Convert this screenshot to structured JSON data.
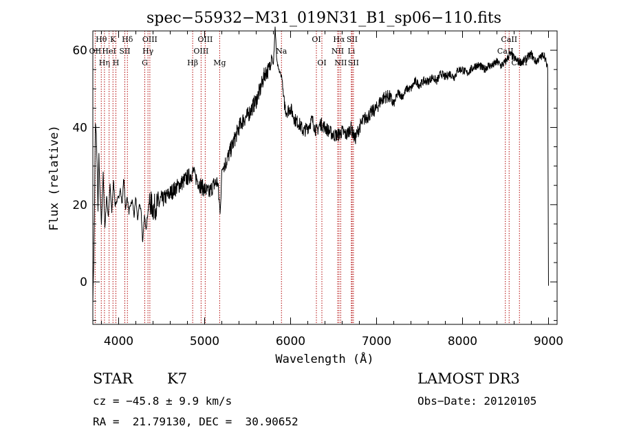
{
  "chart_data": {
    "type": "line",
    "title": "spec−55932−M31_019N31_B1_sp06−110.fits",
    "xlabel": "Wavelength (Å)",
    "ylabel": "Flux (relative)",
    "xlim": [
      3700,
      9100
    ],
    "ylim": [
      -11,
      65
    ],
    "xticks": [
      4000,
      5000,
      6000,
      7000,
      8000,
      9000
    ],
    "yticks": [
      0,
      20,
      40,
      60
    ],
    "grid": false,
    "series": [
      {
        "x": [
          3700,
          3710,
          3720,
          3730,
          3740,
          3750,
          3760,
          3770,
          3780,
          3800,
          3820,
          3840,
          3860,
          3880,
          3900,
          3920,
          3940,
          3960,
          3980,
          4000,
          4020,
          4040,
          4060,
          4080,
          4100,
          4120,
          4140,
          4160,
          4180,
          4200,
          4220,
          4240,
          4260,
          4280,
          4300,
          4320,
          4340,
          4360,
          4400,
          4450,
          4500,
          4550,
          4600,
          4650,
          4700,
          4750,
          4800,
          4850,
          4880,
          4900,
          4950,
          5000,
          5050,
          5100,
          5150,
          5180,
          5190,
          5200,
          5220,
          5250,
          5300,
          5350,
          5400,
          5450,
          5500,
          5550,
          5600,
          5650,
          5700,
          5750,
          5780,
          5800,
          5820,
          5840,
          5860,
          5880,
          5900,
          5920,
          5950,
          6000,
          6050,
          6100,
          6150,
          6200,
          6250,
          6300,
          6350,
          6400,
          6450,
          6500,
          6550,
          6600,
          6650,
          6700,
          6750,
          6800,
          6850,
          6900,
          6950,
          7000,
          7050,
          7100,
          7150,
          7200,
          7250,
          7300,
          7350,
          7400,
          7450,
          7500,
          7550,
          7600,
          7650,
          7700,
          7750,
          7800,
          7850,
          7900,
          7950,
          8000,
          8050,
          8100,
          8150,
          8200,
          8250,
          8300,
          8350,
          8400,
          8450,
          8500,
          8550,
          8600,
          8650,
          8700,
          8750,
          8800,
          8850,
          8900,
          8950,
          8990,
          9000
        ],
        "y": [
          -5,
          5,
          20,
          41,
          38,
          30,
          18,
          33,
          25,
          15,
          28,
          14,
          22,
          17,
          25,
          18,
          26,
          20,
          21,
          22,
          24,
          20,
          27,
          19,
          22,
          18,
          20,
          21,
          17,
          22,
          16,
          20,
          19,
          10,
          17,
          14,
          18,
          21,
          19,
          20,
          21,
          22,
          23,
          24,
          25,
          26,
          27,
          28,
          29,
          27,
          25,
          24,
          23,
          25,
          26,
          18,
          22,
          29,
          30,
          31,
          34,
          37,
          40,
          42,
          43,
          45,
          47,
          50,
          54,
          55,
          59,
          56,
          66,
          57,
          55,
          54,
          53,
          47,
          44,
          45,
          42,
          41,
          39,
          40,
          42,
          39,
          41,
          40,
          39,
          38,
          38,
          39,
          38,
          40,
          37,
          40,
          42,
          43,
          44,
          45,
          47,
          48,
          48,
          46,
          49,
          48,
          50,
          50,
          52,
          51,
          52,
          52,
          53,
          52,
          54,
          53,
          54,
          53,
          55,
          55,
          54,
          55,
          56,
          56,
          55,
          56,
          56,
          57,
          56,
          57,
          59,
          58,
          57,
          57,
          58,
          59,
          57,
          58,
          59,
          55,
          -1
        ]
      }
    ],
    "lines": [
      {
        "name": "Hθ",
        "wave": 3798,
        "row": 1
      },
      {
        "name": "OII",
        "wave": 3727,
        "row": 2
      },
      {
        "name": "Hη",
        "wave": 3835,
        "row": 3
      },
      {
        "name": "HeI",
        "wave": 3889,
        "row": 2
      },
      {
        "name": "K",
        "wave": 3934,
        "row": 1
      },
      {
        "name": "H",
        "wave": 3968,
        "row": 3
      },
      {
        "name": "SII",
        "wave": 4072,
        "row": 2
      },
      {
        "name": "Hδ",
        "wave": 4102,
        "row": 1
      },
      {
        "name": "G",
        "wave": 4304,
        "row": 3
      },
      {
        "name": "Hγ",
        "wave": 4341,
        "row": 2
      },
      {
        "name": "OIII",
        "wave": 4363,
        "row": 1
      },
      {
        "name": "Hβ",
        "wave": 4861,
        "row": 3
      },
      {
        "name": "OIII",
        "wave": 4959,
        "row": 2
      },
      {
        "name": "OIII",
        "wave": 5007,
        "row": 1
      },
      {
        "name": "Mg",
        "wave": 5175,
        "row": 3
      },
      {
        "name": "Na",
        "wave": 5894,
        "row": 2
      },
      {
        "name": "OI",
        "wave": 6300,
        "row": 1
      },
      {
        "name": "OI",
        "wave": 6364,
        "row": 3
      },
      {
        "name": "NII",
        "wave": 6548,
        "row": 2
      },
      {
        "name": "Hα",
        "wave": 6563,
        "row": 1
      },
      {
        "name": "NII",
        "wave": 6583,
        "row": 3
      },
      {
        "name": "Li",
        "wave": 6707,
        "row": 2
      },
      {
        "name": "SII",
        "wave": 6716,
        "row": 1
      },
      {
        "name": "SII",
        "wave": 6731,
        "row": 3
      },
      {
        "name": "CaII",
        "wave": 8498,
        "row": 2
      },
      {
        "name": "CaII",
        "wave": 8542,
        "row": 1
      },
      {
        "name": "CaII",
        "wave": 8662,
        "row": 3
      }
    ]
  },
  "info": {
    "class": "STAR",
    "subclass": "K7",
    "survey": "LAMOST DR3",
    "cz": "cz = −45.8 ± 9.9 km/s",
    "obs_date": "Obs−Date: 20120105",
    "radec": "RA =  21.79130, DEC =  30.90652"
  },
  "colors": {
    "line_marker": "#b00000",
    "spectrum": "#000000"
  }
}
